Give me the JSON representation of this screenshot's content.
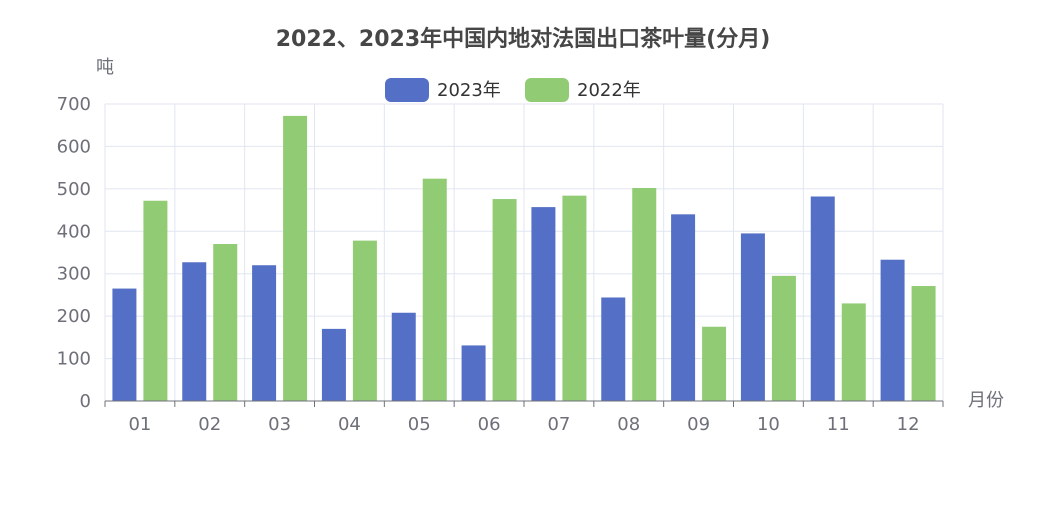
{
  "chart_data": {
    "type": "bar",
    "title": "2022、2023年中国内地对法国出口茶叶量(分月)",
    "xlabel": "月份",
    "ylabel": "吨",
    "ylim": [
      0,
      700
    ],
    "yticks": [
      0,
      100,
      200,
      300,
      400,
      500,
      600,
      700
    ],
    "categories": [
      "01",
      "02",
      "03",
      "04",
      "05",
      "06",
      "07",
      "08",
      "09",
      "10",
      "11",
      "12"
    ],
    "series": [
      {
        "name": "2023年",
        "color": "#5470c6",
        "values": [
          265,
          327,
          320,
          170,
          208,
          131,
          457,
          244,
          440,
          395,
          482,
          333
        ]
      },
      {
        "name": "2022年",
        "color": "#91cc75",
        "values": [
          472,
          370,
          672,
          378,
          524,
          476,
          484,
          502,
          175,
          295,
          230,
          271
        ]
      }
    ],
    "grid": true,
    "legend_position": "top"
  }
}
